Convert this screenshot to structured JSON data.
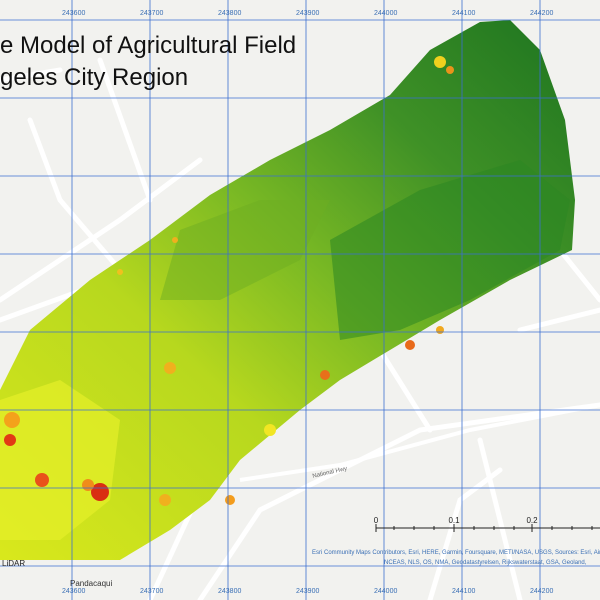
{
  "map": {
    "title_line1": "e Model of Agricultural Field",
    "title_line2": "geles City Region",
    "grid_labels_top": [
      "243600",
      "243700",
      "243800",
      "243900",
      "244000",
      "244100",
      "244200"
    ],
    "grid_labels_bottom": [
      "243600",
      "243700",
      "243800",
      "243900",
      "244000",
      "244100",
      "244200"
    ],
    "scale_bar": {
      "ticks": [
        "0",
        "0.1",
        "0.2"
      ]
    },
    "road_label": "National Hwy",
    "attribution_line1": "Esri Community Maps Contributors, Esri, HERE, Garmin, Foursquare, METI/NASA, USGS, Sources: Esri, Airbus",
    "attribution_line2": "NCEAS, NLS, OS, NMA, Geodatastyrelsen, Rijkswaterstaat, GSA, Geoland,",
    "source_label": "LiDAR",
    "place_label": "Pandacaqui",
    "colors": {
      "basemap": "#f2f2ef",
      "grid": "#3b6fd0",
      "high": "#1f7a1f",
      "mid": "#7bbf1e",
      "low": "#d8e61a",
      "lowest": "#e23a14"
    }
  }
}
